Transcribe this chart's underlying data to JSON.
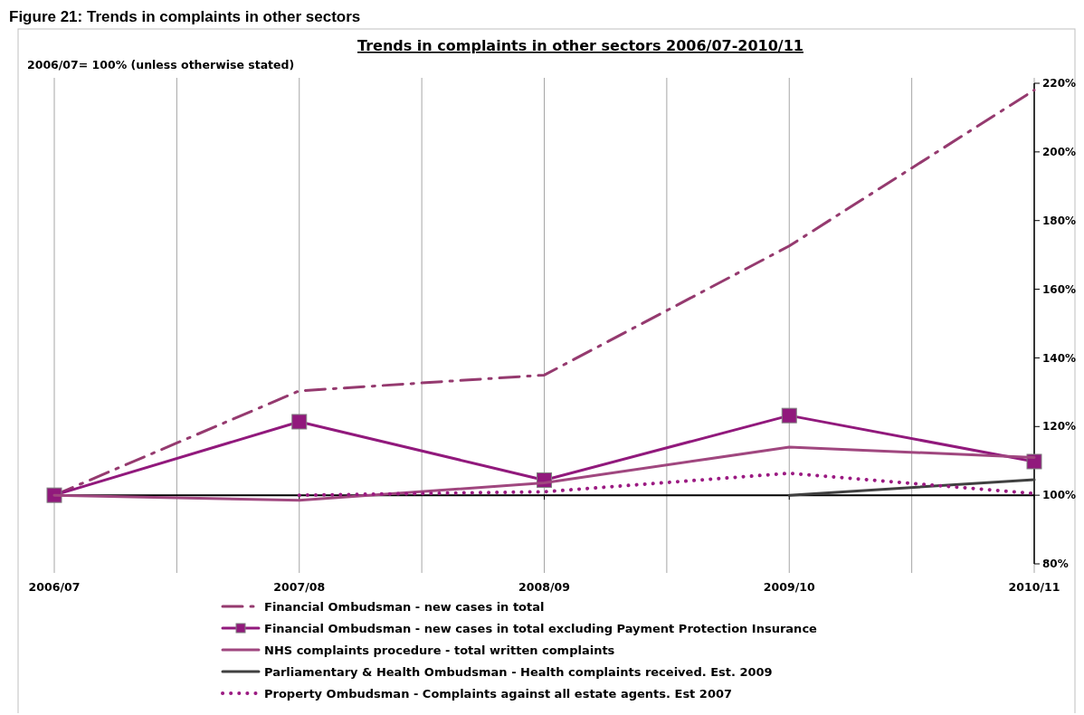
{
  "chart_data": {
    "type": "line",
    "title": "Trends in complaints in other sectors  2006/07-2010/11",
    "subtitle": "2006/07= 100% (unless otherwise stated)",
    "annotations": [
      "Figure 21: Trends in complaints in other sectors"
    ],
    "categories": [
      "2006/07",
      "2007/08",
      "2008/09",
      "2009/10",
      "2010/11"
    ],
    "series": [
      {
        "name": "Financial Ombudsman - new cases in total",
        "color": "#953a6f",
        "line_style": "dashed",
        "marker": "none",
        "values": [
          100,
          130.4,
          135,
          172.6,
          218
        ]
      },
      {
        "name": "Financial Ombudsman - new cases in total excluding Payment Protection Insurance",
        "color": "#91197c",
        "line_style": "solid",
        "marker": "square",
        "values": [
          100,
          121.4,
          104.4,
          123.2,
          109.8
        ]
      },
      {
        "name": "NHS complaints procedure - total written complaints",
        "color": "#a0477f",
        "line_style": "solid",
        "marker": "none",
        "values": [
          100,
          98.5,
          103.6,
          114,
          111
        ]
      },
      {
        "name": "Parliamentary & Health Ombudsman - Health complaints received. Est. 2009",
        "color": "#404040",
        "line_style": "solid",
        "marker": "none",
        "values": [
          null,
          null,
          null,
          100,
          104.5
        ]
      },
      {
        "name": "Property Ombudsman - Complaints against all estate agents. Est 2007",
        "color": "#9b1a82",
        "line_style": "dotted",
        "marker": "none",
        "values": [
          null,
          100,
          101,
          106.4,
          100.5
        ]
      }
    ],
    "ylim": [
      80,
      220
    ],
    "yticks": [
      {
        "value": 80,
        "label": "80%"
      },
      {
        "value": 100,
        "label": "100%"
      },
      {
        "value": 120,
        "label": "120%"
      },
      {
        "value": 140,
        "label": "140%"
      },
      {
        "value": 160,
        "label": "160%"
      },
      {
        "value": 180,
        "label": "180%"
      },
      {
        "value": 200,
        "label": "200%"
      },
      {
        "value": 220,
        "label": "220%"
      }
    ],
    "ref_lines": [
      {
        "axis": "y",
        "value": 100,
        "color": "#000000"
      }
    ],
    "grid": "x",
    "legend": "bottom"
  }
}
